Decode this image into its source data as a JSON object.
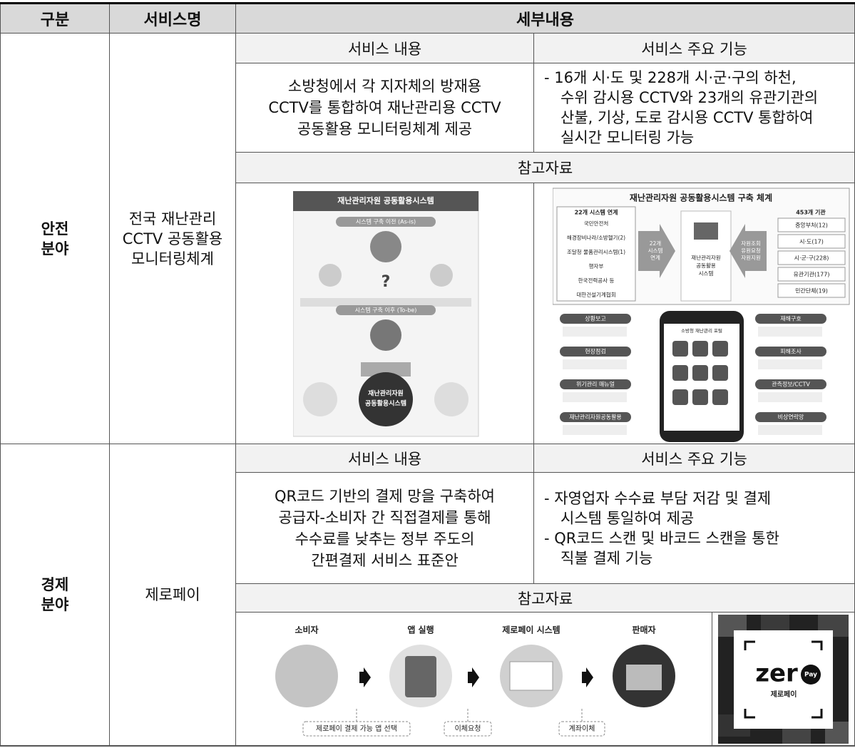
{
  "header": {
    "col1": "구분",
    "col2": "서비스명",
    "col3": "세부내용"
  },
  "rows": [
    {
      "category": [
        "안전",
        "분야"
      ],
      "service": [
        "전국 재난관리",
        "CCTV 공동활용",
        "모니터링체계"
      ],
      "content_header": "서비스 내용",
      "function_header": "서비스 주요 기능",
      "content": [
        "소방청에서 각 지자체의 방재용",
        "CCTV를 통합하여 재난관리용 CCTV",
        "공동활용 모니터링체계 제공"
      ],
      "functions": [
        "- 16개 시·도 및 228개 시·군·구의 하천,",
        "수위 감시용 CCTV와 23개의 유관기관의",
        "산불, 기상, 도로 감시용 CCTV 통합하여",
        "실시간 모니터링 가능"
      ],
      "reference_header": "참고자료",
      "image_left": {
        "title": "재난관리자원 공동활용시스템",
        "as_is": "시스템 구축 이전 (As-is)",
        "question": "?",
        "to_be": "시스템 구축 이후 (To-be)",
        "center": [
          "재난관리자원",
          "공동활용시스템"
        ]
      },
      "image_right": {
        "title": "재난관리자원 공동활용시스템 구축 체계",
        "left_header": "22개 시스템 연계",
        "left_items": [
          "국민안전처",
          "해경장비나라/소방헬기(2)",
          "조달청 물품관리시스템(1)",
          "행자부",
          "한국전력공사 등",
          "대한건설기계협회"
        ],
        "arrow_left": [
          "22개",
          "시스템",
          "연계"
        ],
        "center": [
          "재난관리자원",
          "공동활용",
          "시스템"
        ],
        "arrow_right": [
          "자원조회",
          "유원요청",
          "자원지원"
        ],
        "right_header": "453개 기관",
        "right_items": [
          "중앙부처(12)",
          "시·도(17)",
          "시·군·구(228)",
          "유관기관(177)",
          "민간단체(19)"
        ],
        "app_title": "소방청 재난관리 포털",
        "app_left": [
          "상황보고",
          "현장점검",
          "위기관리 매뉴얼",
          "재난관리자원공동활용"
        ],
        "app_right": [
          "재해구호",
          "피해조사",
          "관측정보/CCTV",
          "비상연락망"
        ]
      }
    },
    {
      "category": [
        "경제",
        "분야"
      ],
      "service": [
        "제로페이"
      ],
      "content_header": "서비스 내용",
      "function_header": "서비스 주요 기능",
      "content": [
        "QR코드 기반의 결제 망을 구축하여",
        "공급자-소비자 간 직접결제를 통해",
        "수수료를 낮추는 정부 주도의",
        "간편결제 서비스 표준안"
      ],
      "functions": [
        "- 자영업자 수수료 부담 저감 및 결제",
        "시스템 통일하여 제공",
        "- QR코드 스캔 및 바코드 스캔을 통한",
        "직불 결제 기능"
      ],
      "reference_header": "참고자료",
      "image_flow": {
        "steps": [
          "소비자",
          "앱 실행",
          "제로페이 시스템",
          "판매자"
        ],
        "notes": [
          "제로페이 결제 가능 앱 선택",
          "이체요청",
          "계좌이체"
        ]
      },
      "image_logo": {
        "word": "zer",
        "badge": "Pay",
        "name": "제로페이"
      }
    }
  ]
}
